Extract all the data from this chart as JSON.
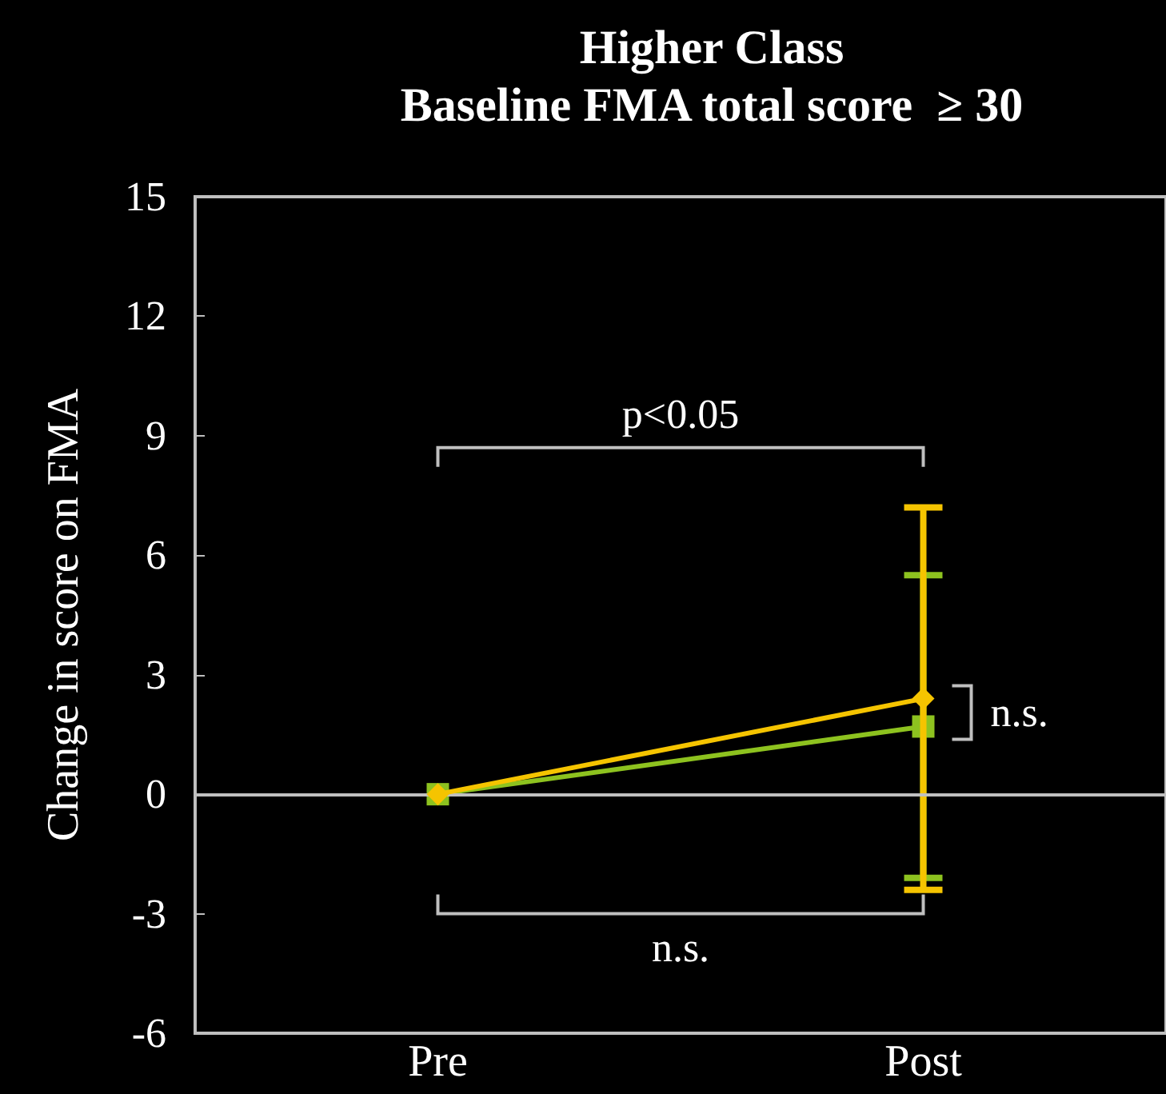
{
  "chart_data": {
    "type": "line",
    "title": "Higher Class",
    "subtitle": "Baseline FMA total score  ≥ 30",
    "ylabel": "Change in score on FMA",
    "categories": [
      "Pre",
      "Post"
    ],
    "series": [
      {
        "color": "#8dc21f",
        "values": [
          0,
          1.7
        ],
        "errors": [
          null,
          3.8
        ],
        "marker": "square"
      },
      {
        "color": "#f5c400",
        "values": [
          0,
          2.4
        ],
        "errors": [
          null,
          4.8
        ],
        "marker": "diamond"
      }
    ],
    "ylim": [
      -6,
      15
    ],
    "yticks": [
      -6,
      -3,
      0,
      3,
      6,
      9,
      12,
      15
    ],
    "grid": false,
    "ref_lines": [
      {
        "axis": "y",
        "value": 0,
        "color": "#bfbfbf"
      }
    ],
    "annotations": [
      "p<0.05",
      "n.s.",
      "n.s."
    ]
  }
}
